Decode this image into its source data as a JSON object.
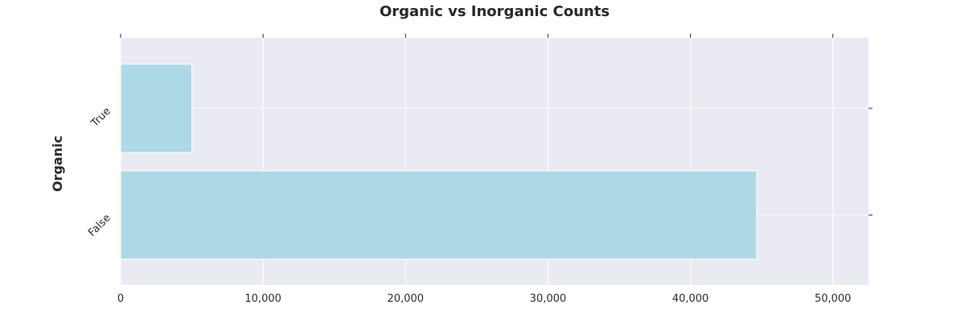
{
  "chart_data": {
    "type": "bar",
    "orientation": "horizontal",
    "title": "Organic vs Inorganic Counts",
    "xlabel": "",
    "ylabel": "Organic",
    "categories": [
      "True",
      "False"
    ],
    "values": [
      5000,
      44650
    ],
    "xlim": [
      0,
      52500
    ],
    "xticks": [
      0,
      10000,
      20000,
      30000,
      40000,
      50000
    ],
    "xtick_labels": [
      "0",
      "10,000",
      "20,000",
      "30,000",
      "40,000",
      "50,000"
    ],
    "grid": true,
    "legend": "none",
    "colors": {
      "bar": "#add8e6",
      "plot_background": "#eaeaf2",
      "grid": "#ffffff",
      "text": "#262626"
    }
  }
}
